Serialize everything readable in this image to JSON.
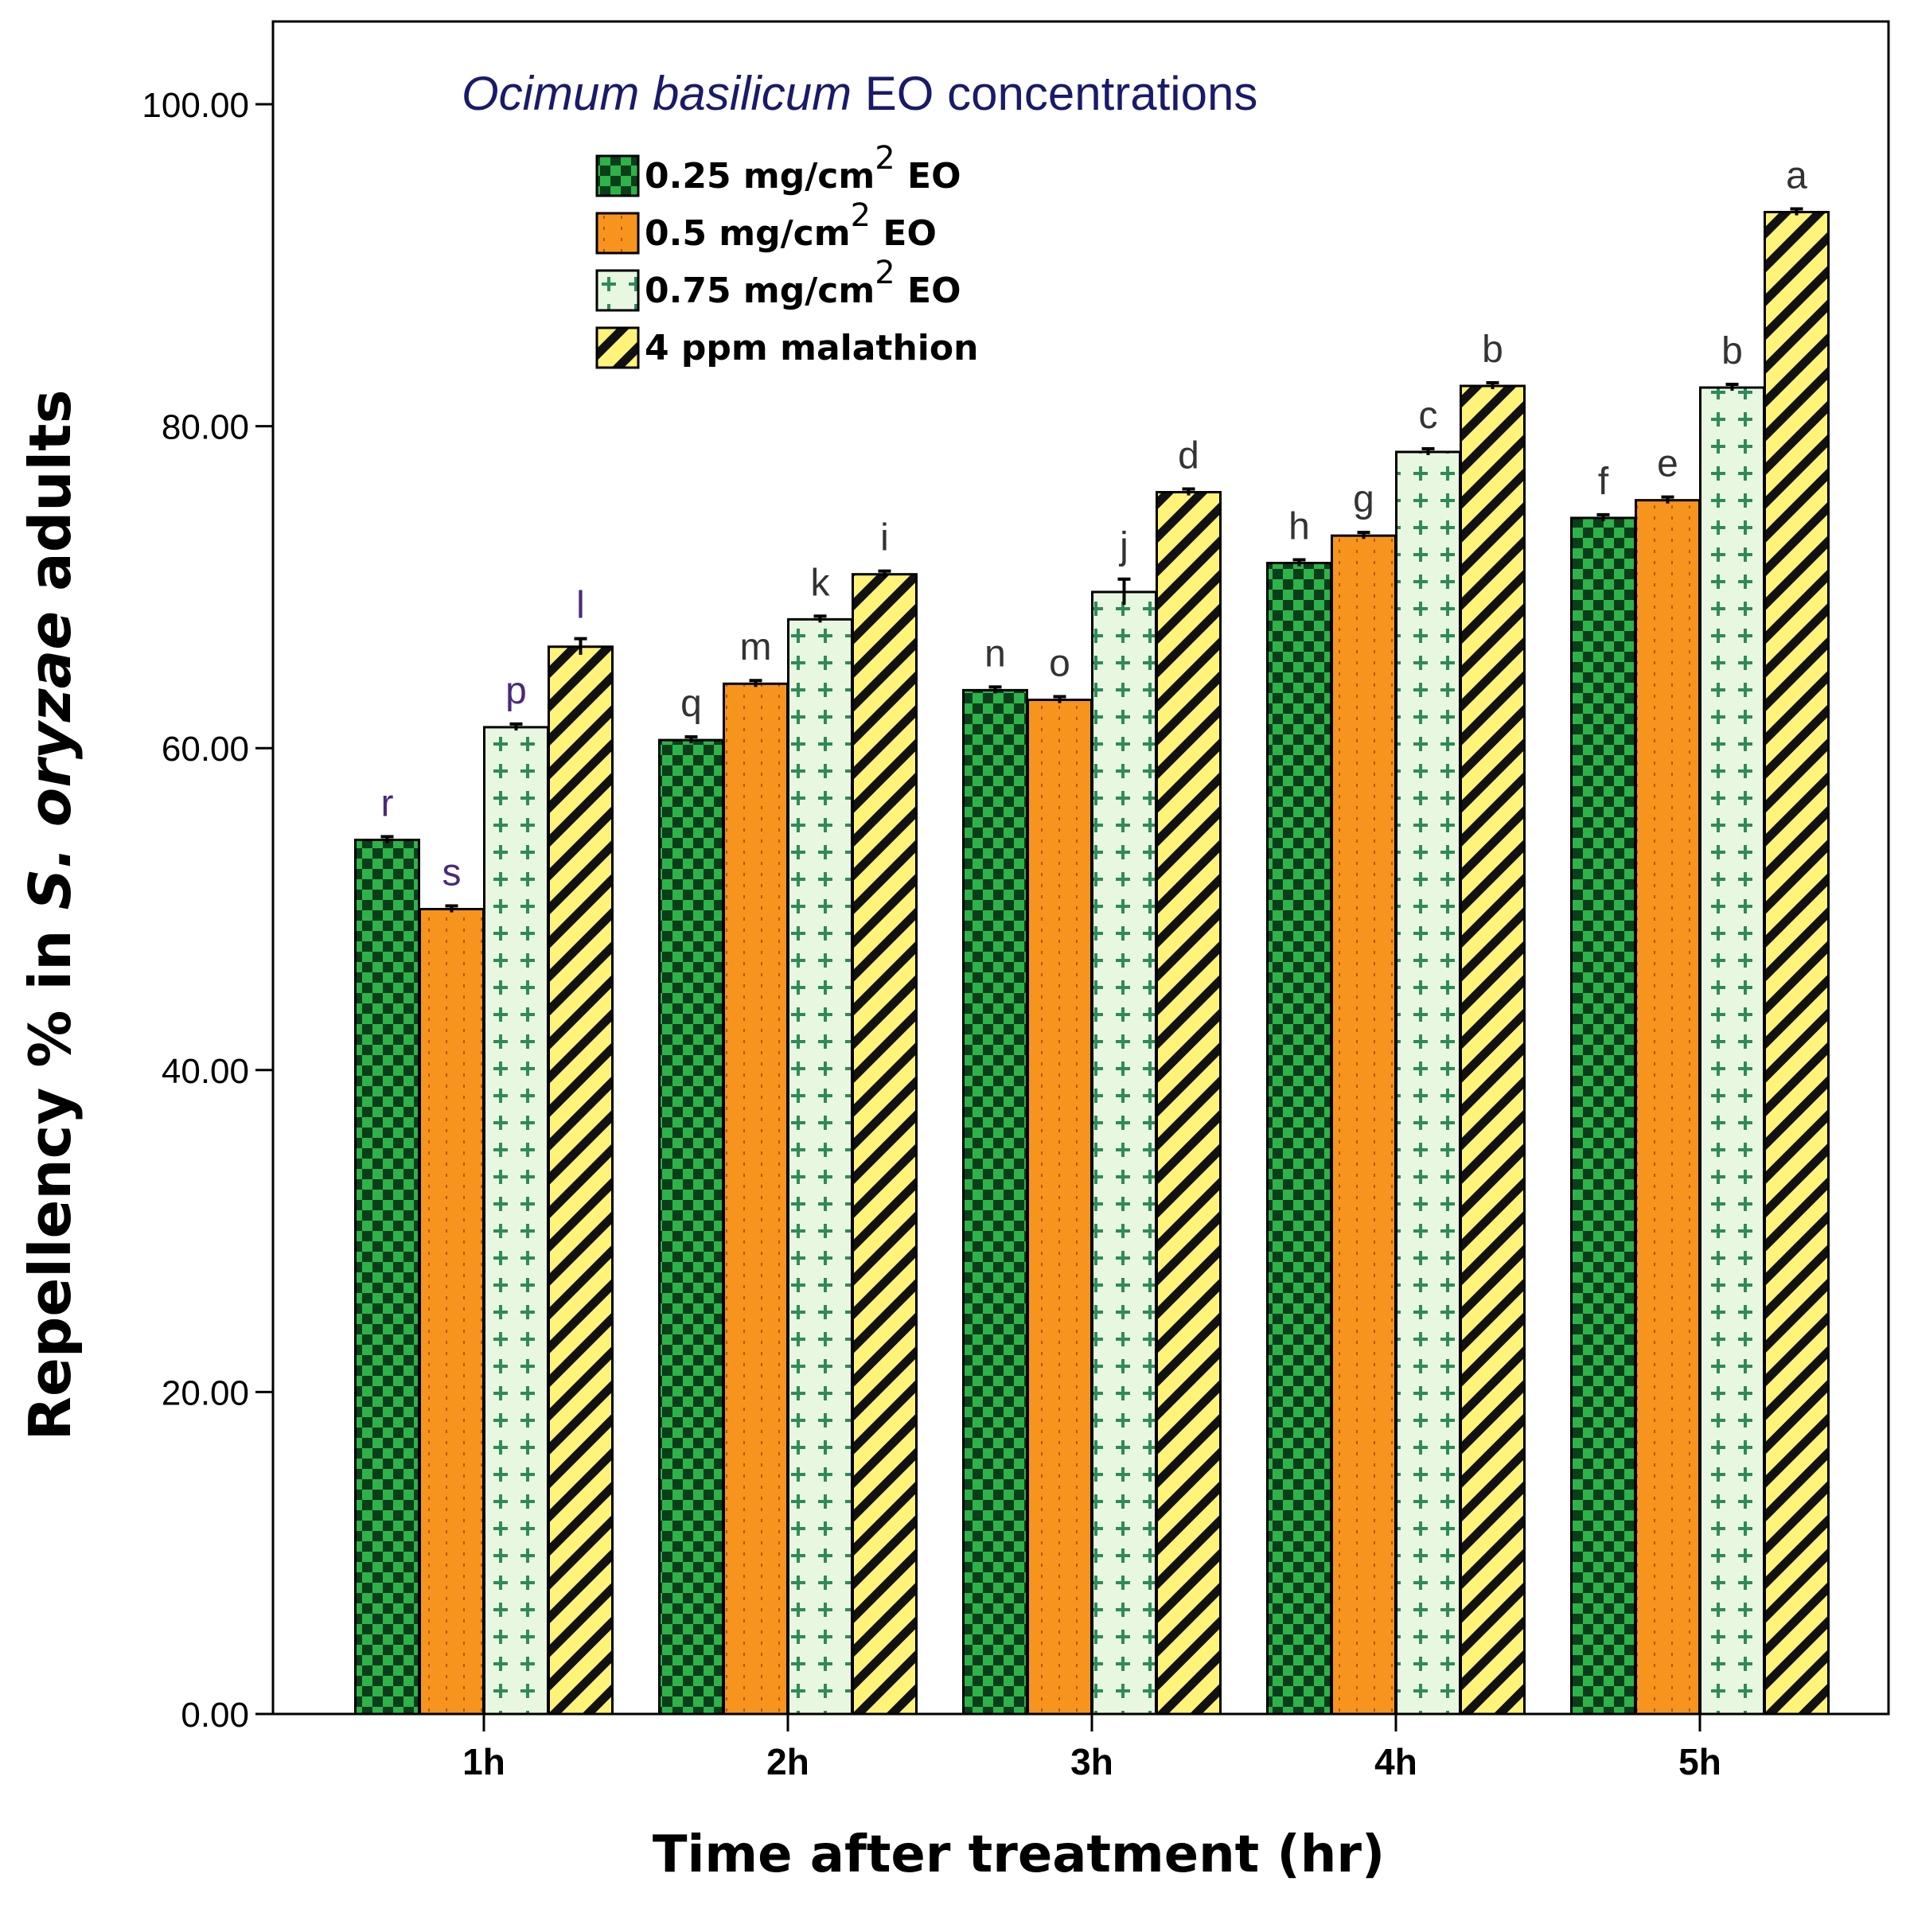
{
  "chart_data": {
    "type": "bar",
    "legend_title": {
      "italic": "Ocimum basilicum",
      "rest": " EO concentrations"
    },
    "xlabel": "Time after treatment (hr)",
    "ylabel": {
      "prefix": "Repellency % in ",
      "italic": "S. oryzae",
      "suffix": " adults"
    },
    "categories": [
      "1h",
      "2h",
      "3h",
      "4h",
      "5h"
    ],
    "yticks": [
      "0.00",
      "20.00",
      "40.00",
      "60.00",
      "80.00",
      "100.00"
    ],
    "ylim": [
      0,
      105
    ],
    "grid": false,
    "legend_position": "top-left",
    "series": [
      {
        "name": "0.25 mg/cm2 EO",
        "name_main": "0.25 mg/cm",
        "name_sup": "2",
        "name_end": " EO",
        "pattern": "checker",
        "color": "#2db34a",
        "values": [
          54.3,
          60.5,
          63.6,
          71.5,
          74.3
        ],
        "errors": [
          0.2,
          0.2,
          0.2,
          0.2,
          0.2
        ],
        "letters": [
          "r",
          "q",
          "n",
          "h",
          "f"
        ]
      },
      {
        "name": "0.5 mg/cm2 EO",
        "name_main": "0.5 mg/cm",
        "name_sup": "2",
        "name_end": " EO",
        "pattern": "dotted",
        "color": "#f7941d",
        "values": [
          50.0,
          64.0,
          63.0,
          73.2,
          75.4
        ],
        "errors": [
          0.2,
          0.2,
          0.2,
          0.2,
          0.2
        ],
        "letters": [
          "s",
          "m",
          "o",
          "g",
          "e"
        ]
      },
      {
        "name": "0.75 mg/cm2 EO",
        "name_main": "0.75 mg/cm",
        "name_sup": "2",
        "name_end": " EO",
        "pattern": "plus",
        "color": "#e8f8e0",
        "values": [
          61.3,
          68.0,
          69.7,
          78.4,
          82.4
        ],
        "errors": [
          0.2,
          0.2,
          0.8,
          0.2,
          0.2
        ],
        "letters": [
          "p",
          "k",
          "j",
          "c",
          "b"
        ]
      },
      {
        "name": "4 ppm malathion",
        "name_main": "4 ppm malathion",
        "name_sup": "",
        "name_end": "",
        "pattern": "diagonal",
        "color": "#fff37a",
        "values": [
          66.3,
          70.8,
          75.9,
          82.5,
          93.3
        ],
        "errors": [
          0.5,
          0.2,
          0.2,
          0.2,
          0.2
        ],
        "letters": [
          "l",
          "i",
          "d",
          "b",
          "a"
        ]
      }
    ],
    "colors": {
      "letter_1h": "#4a2a7a",
      "letter_other": "#333333",
      "ylabel": "#000000"
    }
  }
}
